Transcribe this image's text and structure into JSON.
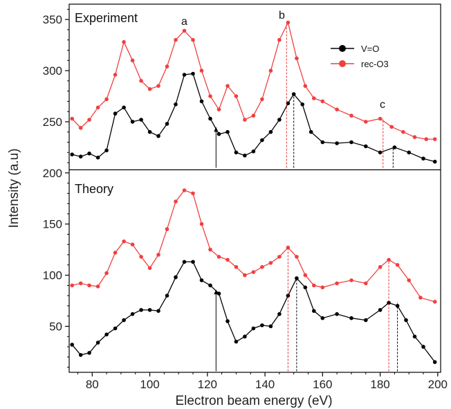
{
  "chart_data": {
    "type": "line",
    "xlabel": "Electron beam energy (eV)",
    "ylabel": "Intensity (a.u)",
    "xlim": [
      72,
      201
    ],
    "ylim": [
      5,
      365
    ],
    "x_ticks": [
      "80",
      "100",
      "120",
      "140",
      "160",
      "180",
      "200"
    ],
    "y_ticks": [
      "50",
      "100",
      "150",
      "200",
      "250",
      "300",
      "350"
    ],
    "panel_divider_y": 203,
    "panels": [
      {
        "title": "Experiment"
      },
      {
        "title": "Theory"
      }
    ],
    "legend": {
      "position": "top-right",
      "entries": [
        "V=O",
        "rec-O3"
      ]
    },
    "colors": {
      "V=O": "#000000",
      "rec-O3": "#f04040"
    },
    "series": [
      {
        "name": "rec-O3",
        "panel": "Experiment",
        "x": [
          73,
          76,
          79,
          82,
          85,
          88,
          91,
          94,
          97,
          100,
          103,
          106,
          109,
          112,
          115,
          118,
          121,
          124,
          127,
          130,
          133,
          136,
          139,
          142,
          145,
          148,
          151,
          154,
          157,
          160,
          165,
          170,
          175,
          180,
          184,
          188,
          192,
          196,
          199
        ],
        "y": [
          253,
          244,
          252,
          264,
          272,
          296,
          328,
          310,
          290,
          282,
          285,
          304,
          330,
          339,
          330,
          300,
          275,
          262,
          285,
          275,
          252,
          256,
          272,
          300,
          330,
          347,
          312,
          285,
          273,
          270,
          262,
          256,
          250,
          253,
          245,
          240,
          235,
          233,
          233
        ]
      },
      {
        "name": "V=O",
        "panel": "Experiment",
        "x": [
          73,
          76,
          79,
          82,
          85,
          88,
          91,
          94,
          97,
          100,
          103,
          106,
          109,
          112,
          115,
          118,
          121,
          124,
          127,
          130,
          133,
          136,
          139,
          142,
          145,
          148,
          150,
          153,
          156,
          160,
          165,
          170,
          175,
          180,
          185,
          190,
          195,
          199
        ],
        "y": [
          218,
          216,
          219,
          215,
          222,
          258,
          264,
          250,
          252,
          240,
          236,
          248,
          267,
          296,
          297,
          270,
          253,
          238,
          240,
          220,
          217,
          221,
          232,
          240,
          252,
          268,
          277,
          267,
          240,
          230,
          229,
          230,
          226,
          220,
          225,
          220,
          214,
          211
        ]
      },
      {
        "name": "rec-O3",
        "panel": "Theory",
        "x": [
          73,
          76,
          79,
          82,
          85,
          88,
          91,
          94,
          97,
          100,
          103,
          106,
          109,
          112,
          115,
          118,
          121,
          124,
          127,
          130,
          133,
          136,
          139,
          142,
          145,
          148,
          151,
          154,
          157,
          160,
          165,
          170,
          175,
          180,
          183,
          186,
          190,
          194,
          199
        ],
        "y": [
          90,
          92,
          90,
          89,
          102,
          122,
          133,
          130,
          118,
          107,
          120,
          145,
          172,
          183,
          180,
          150,
          125,
          118,
          115,
          108,
          100,
          103,
          108,
          112,
          118,
          127,
          118,
          100,
          90,
          88,
          92,
          95,
          92,
          108,
          115,
          110,
          95,
          78,
          74
        ]
      },
      {
        "name": "V=O",
        "panel": "Theory",
        "x": [
          73,
          76,
          79,
          82,
          85,
          88,
          91,
          94,
          97,
          100,
          103,
          106,
          109,
          112,
          115,
          118,
          121,
          124,
          127,
          130,
          133,
          136,
          139,
          142,
          145,
          148,
          151,
          154,
          157,
          160,
          165,
          170,
          175,
          180,
          183,
          186,
          189,
          192,
          195,
          199
        ],
        "y": [
          32,
          22,
          24,
          34,
          42,
          48,
          56,
          62,
          66,
          66,
          65,
          80,
          98,
          113,
          113,
          95,
          90,
          82,
          55,
          35,
          40,
          48,
          51,
          50,
          62,
          80,
          97,
          88,
          65,
          58,
          62,
          58,
          56,
          66,
          73,
          70,
          56,
          40,
          30,
          15
        ]
      }
    ],
    "markers": {
      "a": {
        "x": 113,
        "y": 345
      },
      "b": {
        "x": 148,
        "y": 352
      },
      "c": {
        "x": 181,
        "y": 260
      }
    },
    "dashed_lines": [
      {
        "x": 147.5,
        "from": 205,
        "to": 347,
        "color": "#e03030"
      },
      {
        "x": 150,
        "from": 205,
        "to": 277,
        "color": "#000000"
      },
      {
        "x": 181,
        "from": 205,
        "to": 253,
        "color": "#e03030"
      },
      {
        "x": 184.5,
        "from": 205,
        "to": 225,
        "color": "#000000"
      },
      {
        "x": 148,
        "from": 6,
        "to": 127,
        "color": "#e03030"
      },
      {
        "x": 151,
        "from": 6,
        "to": 97,
        "color": "#000000"
      },
      {
        "x": 183,
        "from": 6,
        "to": 115,
        "color": "#e03030"
      },
      {
        "x": 186,
        "from": 6,
        "to": 74,
        "color": "#000000"
      }
    ],
    "arrows": [
      {
        "x": 123,
        "from": 205,
        "to": 245
      },
      {
        "x": 123,
        "from": 6,
        "to": 86
      }
    ]
  }
}
